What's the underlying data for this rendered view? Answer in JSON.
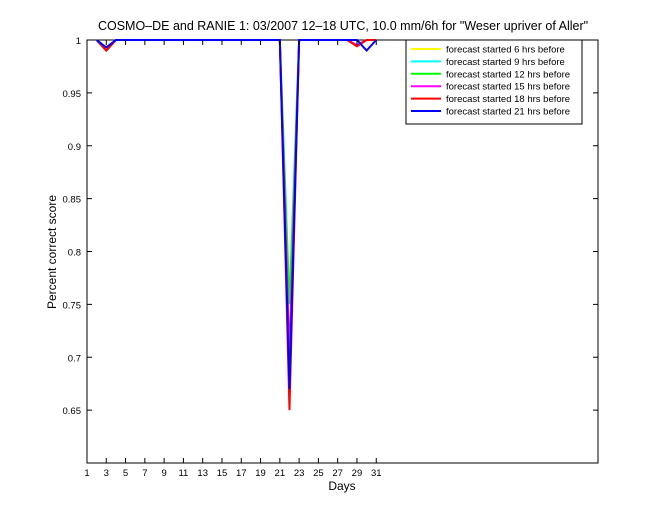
{
  "chart_data": {
    "type": "line",
    "title": "COSMO–DE and RANIE 1: 03/2007 12–18 UTC, 10.0 mm/6h for \"Weser upriver of Aller\"",
    "xlabel": "Days",
    "ylabel": "Percent correct score",
    "xlim": [
      1,
      54
    ],
    "ylim": [
      0.6,
      1.0
    ],
    "x_ticks": [
      1,
      3,
      5,
      7,
      9,
      11,
      13,
      15,
      17,
      19,
      21,
      23,
      25,
      27,
      29,
      31
    ],
    "y_ticks": [
      0.65,
      0.7,
      0.75,
      0.8,
      0.85,
      0.9,
      0.95,
      1
    ],
    "x_tick_labels": [
      "1",
      "3",
      "5",
      "7",
      "9",
      "11",
      "13",
      "15",
      "17",
      "19",
      "21",
      "23",
      "25",
      "27",
      "29",
      "31"
    ],
    "y_tick_labels": [
      "0.65",
      "0.7",
      "0.75",
      "0.8",
      "0.85",
      "0.9",
      "0.95",
      "1"
    ],
    "legend_position": "top-right",
    "grid": false,
    "series": [
      {
        "name": "forecast started 6 hrs before",
        "color": "#ffff00",
        "x": [
          2,
          3,
          4,
          17,
          20,
          21,
          22,
          23,
          28,
          29,
          30,
          31
        ],
        "y": [
          1,
          0.99,
          1,
          1,
          1,
          1,
          0.68,
          1,
          1,
          0.995,
          1,
          1
        ]
      },
      {
        "name": "forecast started 9 hrs before",
        "color": "#00ffff",
        "x": [
          2,
          3,
          4,
          17,
          20,
          21,
          22,
          23,
          28,
          29,
          30,
          31
        ],
        "y": [
          1,
          0.99,
          1,
          1,
          1,
          1,
          0.68,
          1,
          1,
          0.995,
          1,
          1
        ]
      },
      {
        "name": "forecast started 12 hrs before",
        "color": "#00ff00",
        "x": [
          2,
          3,
          4,
          17,
          20,
          21,
          22,
          23,
          28,
          29,
          30,
          31
        ],
        "y": [
          1,
          0.99,
          1,
          1,
          1,
          1,
          0.75,
          1,
          1,
          0.995,
          1,
          1
        ]
      },
      {
        "name": "forecast started 15 hrs before",
        "color": "#ff00ff",
        "x": [
          2,
          3,
          4,
          17,
          20,
          21,
          22,
          23,
          28,
          29,
          30,
          31
        ],
        "y": [
          1,
          0.99,
          1,
          1,
          1,
          1,
          0.7,
          1,
          1,
          0.995,
          1,
          1
        ]
      },
      {
        "name": "forecast started 18 hrs before",
        "color": "#ff0000",
        "x": [
          2,
          3,
          4,
          17,
          20,
          21,
          22,
          23,
          28,
          29,
          30,
          31
        ],
        "y": [
          1,
          0.99,
          1,
          1,
          1,
          1,
          0.65,
          1,
          1,
          0.994,
          1,
          1
        ]
      },
      {
        "name": "forecast started 21 hrs before",
        "color": "#0000ff",
        "x": [
          2,
          3,
          4,
          17,
          20,
          21,
          22,
          23,
          28,
          29,
          30,
          31
        ],
        "y": [
          1,
          0.993,
          1,
          1,
          1,
          1,
          0.67,
          1,
          1,
          1,
          0.99,
          1
        ]
      }
    ]
  }
}
